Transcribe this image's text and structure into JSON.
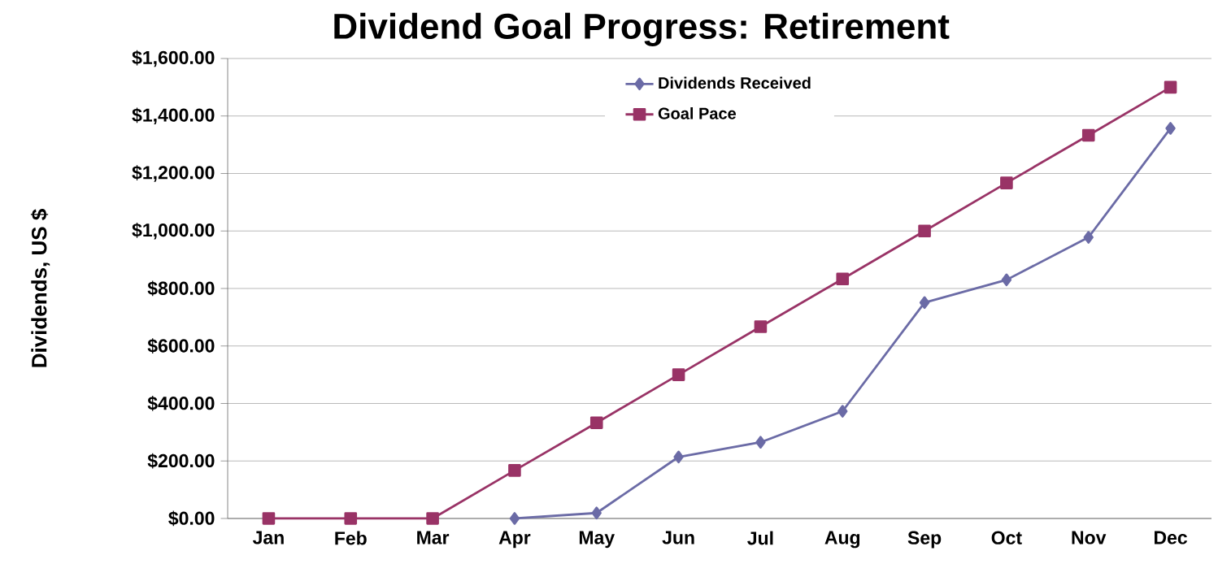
{
  "chart_data": {
    "type": "line",
    "title": "Dividend Goal Progress: Retirement",
    "ylabel": "Dividends, US $",
    "categories": [
      "Jan",
      "Feb",
      "Mar",
      "Apr",
      "May",
      "Jun",
      "Jul",
      "Aug",
      "Sep",
      "Oct",
      "Nov",
      "Dec"
    ],
    "series": [
      {
        "name": "Dividends Received",
        "color": "#6b6ba6",
        "marker": "diamond",
        "values": [
          null,
          null,
          null,
          0,
          19,
          214,
          265,
          373,
          751,
          830,
          978,
          1357
        ]
      },
      {
        "name": "Goal Pace",
        "color": "#993366",
        "marker": "square",
        "values": [
          0,
          0,
          0,
          167,
          333,
          500,
          667,
          833,
          1000,
          1167,
          1333,
          1500
        ]
      }
    ],
    "ylim": [
      0,
      1600
    ],
    "yticks": [
      {
        "value": 0,
        "label": "$0.00"
      },
      {
        "value": 200,
        "label": "$200.00"
      },
      {
        "value": 400,
        "label": "$400.00"
      },
      {
        "value": 600,
        "label": "$600.00"
      },
      {
        "value": 800,
        "label": "$800.00"
      },
      {
        "value": 1000,
        "label": "$1,000.00"
      },
      {
        "value": 1200,
        "label": "$1,200.00"
      },
      {
        "value": 1400,
        "label": "$1,400.00"
      },
      {
        "value": 1600,
        "label": "$1,600.00"
      }
    ],
    "grid": "y",
    "legend": "top",
    "line_style": "solid"
  }
}
